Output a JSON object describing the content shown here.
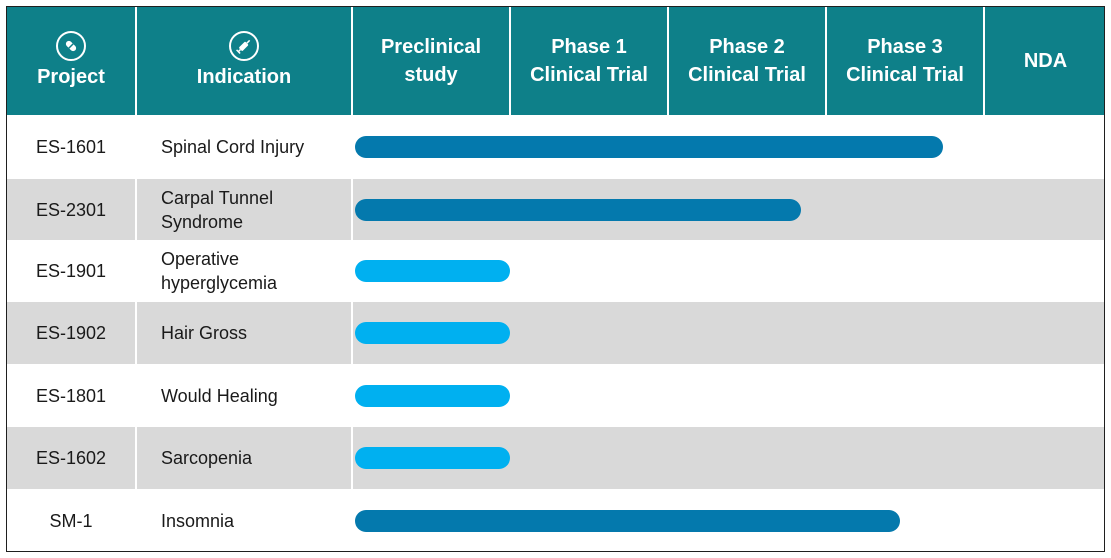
{
  "header": {
    "project": "Project",
    "indication": "Indication",
    "stages": [
      "Preclinical\nstudy",
      "Phase 1\nClinical Trial",
      "Phase 2\nClinical Trial",
      "Phase 3\nClinical Trial",
      "NDA"
    ]
  },
  "colors": {
    "header_bg": "#0e8089",
    "row_shade": "#d9d9d9",
    "bar_dark": "#0479ad",
    "bar_light": "#00b0f0"
  },
  "chart_data": {
    "type": "bar",
    "orientation": "horizontal",
    "x_scale": "pipeline stage",
    "stages": [
      "Preclinical study",
      "Phase 1 Clinical Trial",
      "Phase 2 Clinical Trial",
      "Phase 3 Clinical Trial",
      "NDA"
    ],
    "rows": [
      {
        "project": "ES-1601",
        "indication": "Spinal Cord Injury",
        "progress_stages": 3.72,
        "bar_color": "dark"
      },
      {
        "project": "ES-2301",
        "indication": "Carpal Tunnel\nSyndrome",
        "progress_stages": 2.82,
        "bar_color": "dark"
      },
      {
        "project": "ES-1901",
        "indication": "Operative\nhyperglycemia",
        "progress_stages": 0.98,
        "bar_color": "light"
      },
      {
        "project": "ES-1902",
        "indication": "Hair Gross",
        "progress_stages": 0.98,
        "bar_color": "light"
      },
      {
        "project": "ES-1801",
        "indication": "Would Healing",
        "progress_stages": 0.98,
        "bar_color": "light"
      },
      {
        "project": "ES-1602",
        "indication": "Sarcopenia",
        "progress_stages": 0.98,
        "bar_color": "light"
      },
      {
        "project": "SM-1",
        "indication": "Insomnia",
        "progress_stages": 3.45,
        "bar_color": "dark"
      }
    ]
  }
}
